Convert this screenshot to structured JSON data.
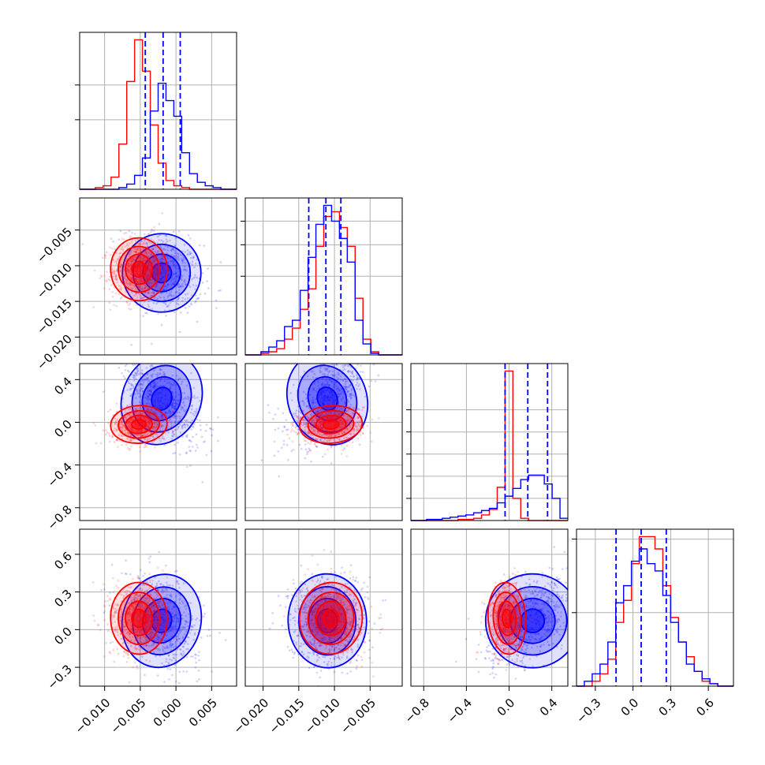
{
  "chart_data": {
    "type": "corner",
    "colors": {
      "series_a": "#0000ff",
      "series_b": "#ff0000",
      "grid": "#b0b0b0",
      "frame": "#000000"
    },
    "series": [
      {
        "color": "#0000ff",
        "means": [
          -0.002,
          -0.011,
          0.22,
          0.07
        ],
        "stds": [
          0.0025,
          0.0025,
          0.2,
          0.17
        ]
      },
      {
        "color": "#ff0000",
        "means": [
          -0.0052,
          -0.0105,
          -0.02,
          0.09
        ],
        "stds": [
          0.0018,
          0.002,
          0.08,
          0.13
        ]
      }
    ],
    "ranges": [
      [
        -0.0135,
        0.0085
      ],
      [
        -0.0225,
        -0.0005
      ],
      [
        -0.92,
        0.55
      ],
      [
        -0.45,
        0.8
      ]
    ],
    "tick_labels": [
      [
        [
          "-0.010",
          "−0.010"
        ],
        [
          "-0.005",
          "−0.005"
        ],
        [
          "0.000",
          "0.000"
        ],
        [
          "0.005",
          "0.005"
        ]
      ],
      [
        [
          "-0.020",
          "−0.020"
        ],
        [
          "-0.015",
          "−0.015"
        ],
        [
          "-0.010",
          "−0.010"
        ],
        [
          "-0.005",
          "−0.005"
        ]
      ],
      [
        [
          "-0.8",
          "−0.8"
        ],
        [
          "-0.4",
          "−0.4"
        ],
        [
          "0.0",
          "0.0"
        ],
        [
          "0.4",
          "0.4"
        ]
      ],
      [
        [
          "-0.3",
          "−0.3"
        ],
        [
          "0.0",
          "0.0"
        ],
        [
          "0.3",
          "0.3"
        ],
        [
          "0.6",
          "0.6"
        ]
      ]
    ],
    "histograms": [
      {
        "edges": [
          -0.0135,
          -0.0124,
          -0.0113,
          -0.0102,
          -0.0091,
          -0.008,
          -0.0069,
          -0.0058,
          -0.0047,
          -0.0036,
          -0.0025,
          -0.0014,
          -0.0003,
          0.0008,
          0.0019,
          0.003,
          0.0041,
          0.0052,
          0.0063,
          0.0074,
          0.0085
        ],
        "series_a": [
          0,
          0,
          0,
          0,
          0,
          1,
          3,
          8,
          18,
          45,
          61,
          51,
          42,
          21,
          9,
          4,
          2,
          1,
          0,
          0
        ],
        "series_b": [
          0,
          0,
          1,
          2,
          7,
          26,
          62,
          86,
          68,
          37,
          15,
          5,
          2,
          1,
          0,
          0,
          0,
          0,
          0,
          0
        ],
        "quantile_lines": [
          -0.0043,
          -0.0018,
          0.0006
        ],
        "y_ticks": [
          40,
          60
        ]
      },
      {
        "edges": [
          -0.0225,
          -0.0214,
          -0.0203,
          -0.0192,
          -0.0181,
          -0.017,
          -0.0159,
          -0.0148,
          -0.0137,
          -0.0126,
          -0.0115,
          -0.0104,
          -0.0093,
          -0.0082,
          -0.0071,
          -0.006,
          -0.0049,
          -0.0038,
          -0.0027,
          -0.0016,
          -0.0005
        ],
        "series_a": [
          0,
          0,
          2,
          5,
          9,
          18,
          22,
          41,
          62,
          83,
          95,
          85,
          74,
          59,
          22,
          7,
          1,
          0,
          0,
          0
        ],
        "series_b": [
          0,
          0,
          1,
          2,
          4,
          10,
          17,
          29,
          42,
          69,
          88,
          91,
          81,
          69,
          36,
          10,
          2,
          0,
          0,
          0
        ],
        "quantile_lines": [
          -0.0136,
          -0.0112,
          -0.0091
        ],
        "y_ticks": [
          50,
          70,
          85
        ]
      },
      {
        "edges": [
          -0.92,
          -0.8465,
          -0.773,
          -0.6995,
          -0.626,
          -0.5525,
          -0.479,
          -0.4055,
          -0.332,
          -0.2585,
          -0.185,
          -0.1115,
          -0.038,
          0.0355,
          0.109,
          0.1825,
          0.256,
          0.3295,
          0.403,
          0.4765,
          0.55
        ],
        "series_a": [
          0,
          0,
          1,
          1,
          2,
          3,
          4,
          5,
          7,
          9,
          11,
          16,
          22,
          29,
          37,
          41,
          41,
          33,
          20,
          2
        ],
        "series_b": [
          0,
          0,
          0,
          0,
          0,
          0,
          1,
          1,
          2,
          5,
          10,
          30,
          135,
          20,
          2,
          0,
          0,
          0,
          0,
          0
        ],
        "quantile_lines": [
          -0.038,
          0.175,
          0.36
        ],
        "y_ticks": [
          20,
          40,
          60,
          80,
          100
        ]
      },
      {
        "edges": [
          -0.45,
          -0.3875,
          -0.325,
          -0.2625,
          -0.2,
          -0.1375,
          -0.075,
          -0.0125,
          0.05,
          0.1125,
          0.175,
          0.2375,
          0.3,
          0.3625,
          0.425,
          0.4875,
          0.55,
          0.6125,
          0.675,
          0.7375,
          0.8
        ],
        "series_a": [
          0,
          2,
          5,
          9,
          18,
          34,
          41,
          51,
          56,
          50,
          47,
          37,
          26,
          18,
          9,
          6,
          3,
          1,
          0,
          0
        ],
        "series_b": [
          0,
          0,
          2,
          5,
          11,
          26,
          35,
          50,
          61,
          61,
          56,
          41,
          28,
          18,
          12,
          6,
          2,
          1,
          0,
          0
        ],
        "quantile_lines": [
          -0.135,
          0.065,
          0.265
        ],
        "y_ticks": [
          0,
          30,
          60
        ]
      }
    ],
    "grid": true
  }
}
